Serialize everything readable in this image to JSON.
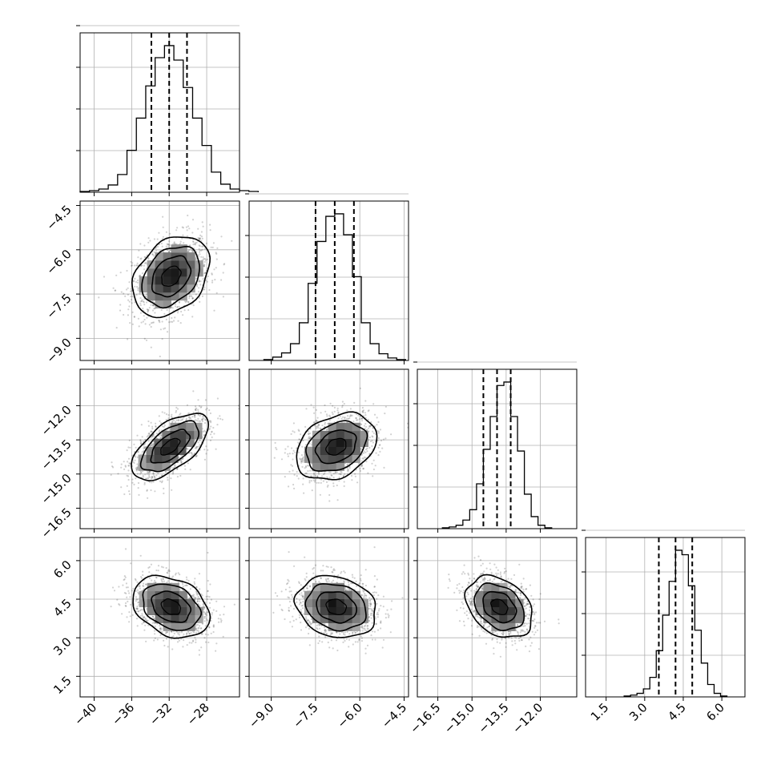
{
  "chart_data": {
    "type": "corner",
    "grid": true,
    "parameters": [
      {
        "x_range": [
          -41.5,
          -24.5
        ],
        "tick_values": [
          -40,
          -36,
          -32,
          -28
        ],
        "tick_labels": [
          "−40",
          "−36",
          "−32",
          "−28"
        ],
        "quantiles": [
          -33.9,
          -32.0,
          -30.1
        ],
        "histogram_bin_width": 1.0,
        "histogram_counts": [
          1,
          2,
          4,
          9,
          22,
          52,
          92,
          132,
          167,
          182,
          164,
          130,
          92,
          58,
          25,
          10,
          4,
          2,
          1
        ]
      },
      {
        "x_range": [
          -9.75,
          -4.35
        ],
        "tick_values": [
          -9.0,
          -7.5,
          -6.0,
          -4.5
        ],
        "tick_labels": [
          "−9.0",
          "−7.5",
          "−6.0",
          "−4.5"
        ],
        "quantiles": [
          -7.5,
          -6.85,
          -6.2
        ],
        "histogram_bin_width": 0.3,
        "histogram_counts": [
          1,
          4,
          9,
          20,
          45,
          92,
          142,
          172,
          175,
          150,
          100,
          45,
          20,
          8,
          3,
          1
        ]
      },
      {
        "x_range": [
          -17.4,
          -10.4
        ],
        "tick_values": [
          -16.5,
          -15.0,
          -13.5,
          -12.0
        ],
        "tick_labels": [
          "−16.5",
          "−15.0",
          "−13.5",
          "−12.0"
        ],
        "quantiles": [
          -14.5,
          -13.9,
          -13.3
        ],
        "histogram_bin_width": 0.3,
        "histogram_counts": [
          1,
          2,
          4,
          10,
          22,
          52,
          92,
          130,
          166,
          170,
          130,
          90,
          40,
          14,
          4,
          1
        ]
      },
      {
        "x_range": [
          0.7,
          6.9
        ],
        "tick_values": [
          1.5,
          3.0,
          4.5,
          6.0
        ],
        "tick_labels": [
          "1.5",
          "3.0",
          "4.5",
          "6.0"
        ],
        "quantiles": [
          3.55,
          4.2,
          4.85
        ],
        "histogram_bin_width": 0.25,
        "histogram_counts": [
          1,
          2,
          4,
          9,
          22,
          52,
          92,
          130,
          165,
          160,
          125,
          75,
          38,
          14,
          4,
          1
        ]
      }
    ],
    "pairs": [
      {
        "x": 0,
        "y": 1,
        "center": [
          -31.8,
          -6.9
        ],
        "sigma": [
          2.05,
          0.68
        ],
        "rho": 0.32
      },
      {
        "x": 0,
        "y": 2,
        "center": [
          -31.9,
          -13.8
        ],
        "sigma": [
          2.05,
          0.73
        ],
        "rho": 0.62
      },
      {
        "x": 0,
        "y": 3,
        "center": [
          -31.8,
          4.2
        ],
        "sigma": [
          2.05,
          0.6
        ],
        "rho": -0.3
      },
      {
        "x": 1,
        "y": 2,
        "center": [
          -6.8,
          -13.8
        ],
        "sigma": [
          0.68,
          0.73
        ],
        "rho": 0.3
      },
      {
        "x": 1,
        "y": 3,
        "center": [
          -6.8,
          4.2
        ],
        "sigma": [
          0.68,
          0.6
        ],
        "rho": -0.18
      },
      {
        "x": 2,
        "y": 3,
        "center": [
          -13.8,
          4.2
        ],
        "sigma": [
          0.73,
          0.6
        ],
        "rho": -0.32
      }
    ],
    "contour_levels_sigma": [
      0.5,
      1.0,
      1.5,
      2.0
    ]
  }
}
